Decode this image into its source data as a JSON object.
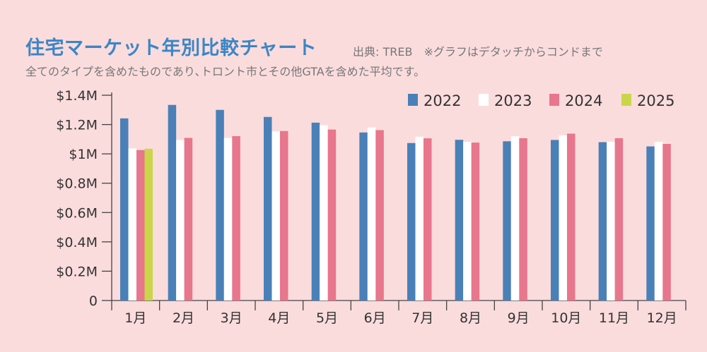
{
  "header": {
    "title": "住宅マーケット年別比較チャート",
    "source": "出典: TREB　※グラフはデタッチからコンドまで",
    "note": "全てのタイプを含めたものであり､トロント市とその他GTAを含めた平均です。"
  },
  "colors": {
    "background": "#fbdcdc",
    "title": "#3b86c6",
    "axis": "#444444"
  },
  "chart_data": {
    "type": "bar",
    "categories": [
      "1月",
      "2月",
      "3月",
      "4月",
      "5月",
      "6月",
      "7月",
      "8月",
      "9月",
      "10月",
      "11月",
      "12月"
    ],
    "series": [
      {
        "name": "2022",
        "color": "#4a80b8",
        "values": [
          1242000,
          1334000,
          1300000,
          1252000,
          1213000,
          1146000,
          1074000,
          1096000,
          1086000,
          1095000,
          1080000,
          1051000
        ]
      },
      {
        "name": "2023",
        "color": "#ffffff",
        "values": [
          1037000,
          1095000,
          1109000,
          1153000,
          1196000,
          1180000,
          1117000,
          1082000,
          1120000,
          1126000,
          1083000,
          1082000
        ]
      },
      {
        "name": "2024",
        "color": "#e8768c",
        "values": [
          1026000,
          1109000,
          1121000,
          1156000,
          1166000,
          1162000,
          1106000,
          1077000,
          1107000,
          1138000,
          1107000,
          1068000
        ]
      },
      {
        "name": "2025",
        "color": "#c9d64a",
        "values": [
          1035000,
          null,
          null,
          null,
          null,
          null,
          null,
          null,
          null,
          null,
          null,
          null
        ]
      }
    ],
    "yticks": [
      0,
      200000,
      400000,
      600000,
      800000,
      1000000,
      1200000,
      1400000
    ],
    "yticklabels": [
      "0",
      "$0.2M",
      "$0.4M",
      "$0.6M",
      "$0.8M",
      "$1M",
      "$1.2M",
      "$1.4M"
    ],
    "ylim": [
      0,
      1400000
    ],
    "legend": "top-right",
    "grid": false
  }
}
